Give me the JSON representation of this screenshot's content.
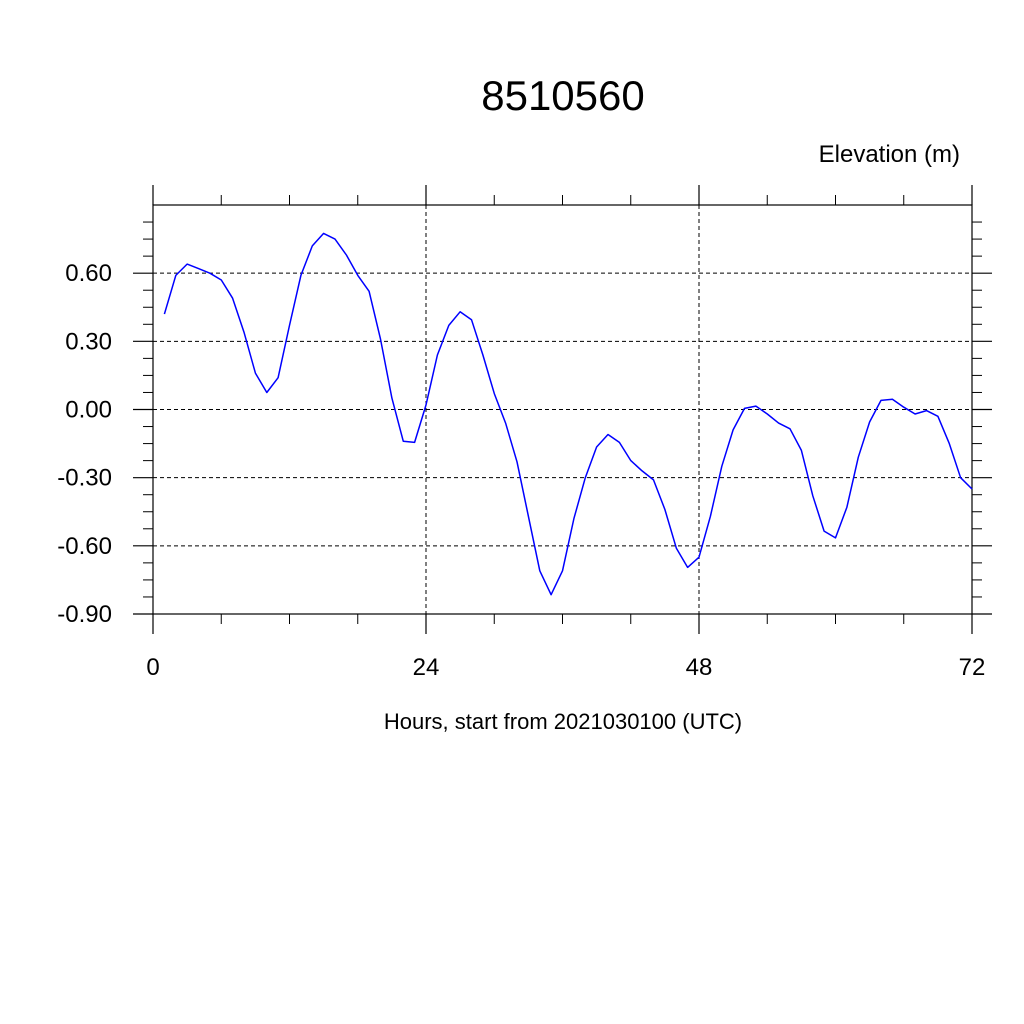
{
  "chart_data": {
    "type": "line",
    "title": "8510560",
    "ylabel": "Elevation (m)",
    "xlabel": "Hours, start from 2021030100 (UTC)",
    "xlim": [
      0,
      72
    ],
    "ylim": [
      -0.9,
      0.9
    ],
    "x_ticks": [
      0,
      24,
      48,
      72
    ],
    "x_tick_labels": [
      "0",
      "24",
      "48",
      "72"
    ],
    "y_ticks": [
      -0.9,
      -0.6,
      -0.3,
      0.0,
      0.3,
      0.6
    ],
    "y_tick_labels": [
      "-0.90",
      "-0.60",
      "-0.30",
      "0.00",
      "0.30",
      "0.60"
    ],
    "grid": true,
    "colors": {
      "line": "#0000ff",
      "axis": "#000000",
      "grid": "#000000"
    },
    "series": [
      {
        "x": [
          1,
          2,
          3,
          4,
          5,
          6,
          7,
          8,
          9,
          10,
          11,
          12,
          13,
          14,
          15,
          16,
          17,
          18,
          19,
          20,
          21,
          22,
          23,
          24,
          25,
          26,
          27,
          28,
          29,
          30,
          31,
          32,
          33,
          34,
          35,
          36,
          37,
          38,
          39,
          40,
          41,
          42,
          43,
          44,
          45,
          46,
          47,
          48,
          49,
          50,
          51,
          52,
          53,
          54,
          55,
          56,
          57,
          58,
          59,
          60,
          61,
          62,
          63,
          64,
          65,
          66,
          67,
          68,
          69,
          70,
          71,
          72
        ],
        "values": [
          0.42,
          0.59,
          0.64,
          0.62,
          0.6,
          0.57,
          0.49,
          0.34,
          0.16,
          0.075,
          0.14,
          0.37,
          0.59,
          0.72,
          0.775,
          0.75,
          0.68,
          0.59,
          0.52,
          0.31,
          0.05,
          -0.14,
          -0.145,
          0.02,
          0.24,
          0.37,
          0.43,
          0.395,
          0.24,
          0.07,
          -0.06,
          -0.23,
          -0.47,
          -0.71,
          -0.815,
          -0.71,
          -0.48,
          -0.3,
          -0.165,
          -0.11,
          -0.145,
          -0.225,
          -0.27,
          -0.31,
          -0.44,
          -0.61,
          -0.695,
          -0.65,
          -0.47,
          -0.25,
          -0.09,
          0.005,
          0.015,
          -0.02,
          -0.06,
          -0.085,
          -0.18,
          -0.38,
          -0.535,
          -0.565,
          -0.43,
          -0.21,
          -0.055,
          0.04,
          0.045,
          0.01,
          -0.02,
          -0.005,
          -0.03,
          -0.15,
          -0.3,
          -0.35
        ]
      }
    ]
  }
}
